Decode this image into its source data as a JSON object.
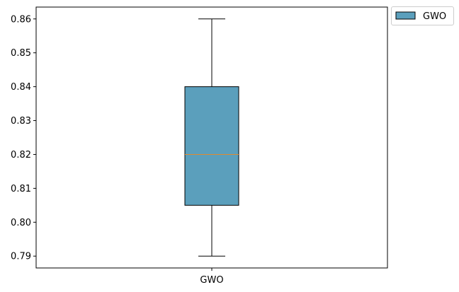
{
  "chart_data": {
    "type": "box",
    "categories": [
      "GWO"
    ],
    "series": [
      {
        "name": "GWO",
        "whisker_low": 0.79,
        "q1": 0.805,
        "median": 0.82,
        "q3": 0.84,
        "whisker_high": 0.86
      }
    ],
    "title": "",
    "xlabel": "",
    "ylabel": "",
    "ylim": [
      0.7865,
      0.8635
    ],
    "yticks": [
      "0.79",
      "0.80",
      "0.81",
      "0.82",
      "0.83",
      "0.84",
      "0.85",
      "0.86"
    ],
    "grid": false,
    "legend": {
      "placement": "outside-top-right",
      "entries": [
        "GWO"
      ]
    },
    "colors": {
      "box_fill": "#5b9fbc",
      "median_line": "#e08a2c",
      "edge": "#000000"
    }
  }
}
